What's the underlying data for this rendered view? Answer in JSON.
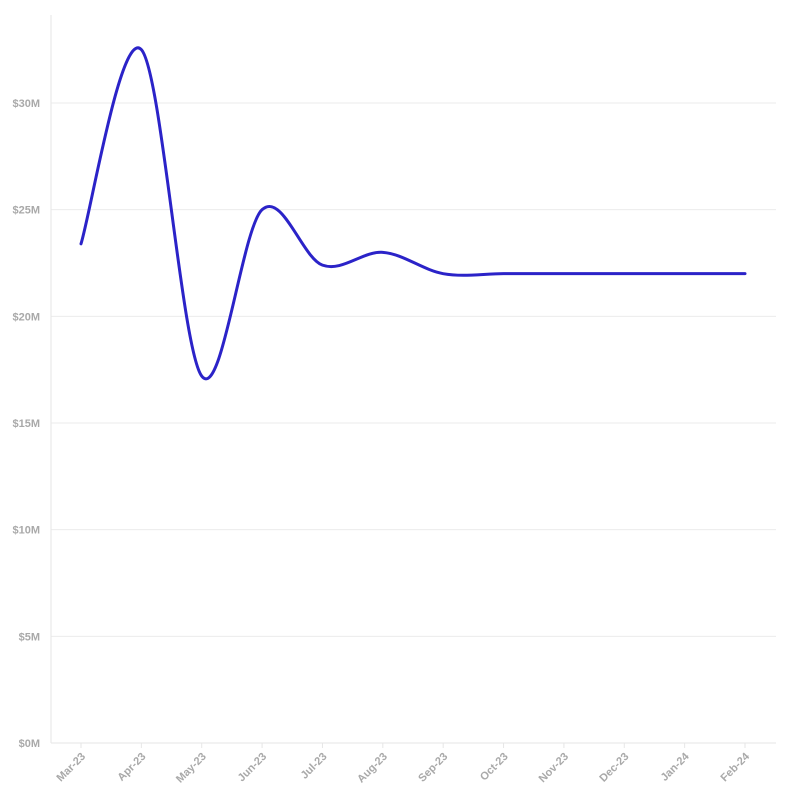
{
  "chart_data": {
    "type": "line",
    "title": "",
    "xlabel": "",
    "ylabel": "",
    "categories": [
      "Mar-23",
      "Apr-23",
      "May-23",
      "Jun-23",
      "Jul-23",
      "Aug-23",
      "Sep-23",
      "Oct-23",
      "Nov-23",
      "Dec-23",
      "Jan-24",
      "Feb-24"
    ],
    "series": [
      {
        "values": [
          23.4,
          32.5,
          17.2,
          25.0,
          22.4,
          23.0,
          22.0,
          22.0,
          22.0,
          22.0,
          22.0,
          22.0
        ]
      }
    ],
    "y_ticks": [
      0,
      5,
      10,
      15,
      20,
      25,
      30
    ],
    "y_tick_labels": [
      "$0M",
      "$5M",
      "$10M",
      "$15M",
      "$20M",
      "$25M",
      "$30M"
    ],
    "ylim": [
      0,
      35
    ],
    "grid": true,
    "colors": {
      "line": "#2b23c8",
      "grid": "#ebebeb",
      "tick_text": "#a9a9a9"
    }
  }
}
